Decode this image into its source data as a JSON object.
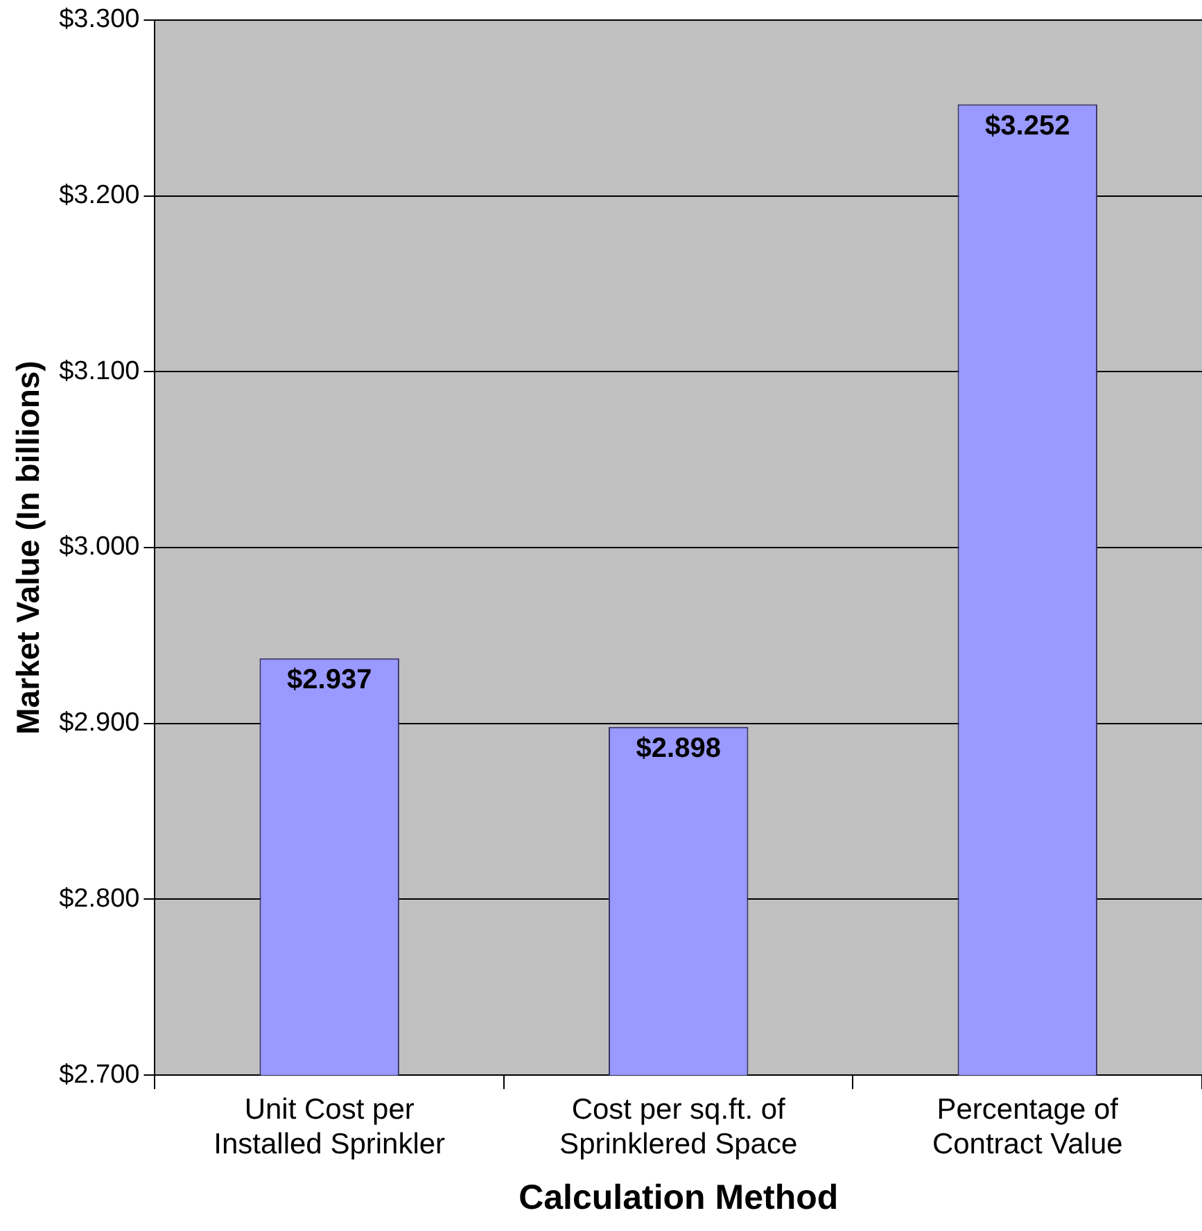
{
  "chart_data": {
    "type": "bar",
    "xlabel": "Calculation Method",
    "ylabel": "Market Value (In billions)",
    "categories": [
      "Unit Cost per Installed Sprinkler",
      "Cost per sq.ft. of Sprinklered Space",
      "Percentage of Contract Value"
    ],
    "values": [
      2.937,
      2.898,
      3.252
    ],
    "value_labels": [
      "$2.937",
      "$2.898",
      "$3.252"
    ],
    "color": "#9999ff",
    "ylim": [
      2.7,
      3.3
    ],
    "yticks": [
      {
        "value": 2.7,
        "label": "$2.700"
      },
      {
        "value": 2.8,
        "label": "$2.800"
      },
      {
        "value": 2.9,
        "label": "$2.900"
      },
      {
        "value": 3.0,
        "label": "$3.000"
      },
      {
        "value": 3.1,
        "label": "$3.100"
      },
      {
        "value": 3.2,
        "label": "$3.200"
      },
      {
        "value": 3.3,
        "label": "$3.300"
      }
    ],
    "grid": "y",
    "legend": false
  }
}
